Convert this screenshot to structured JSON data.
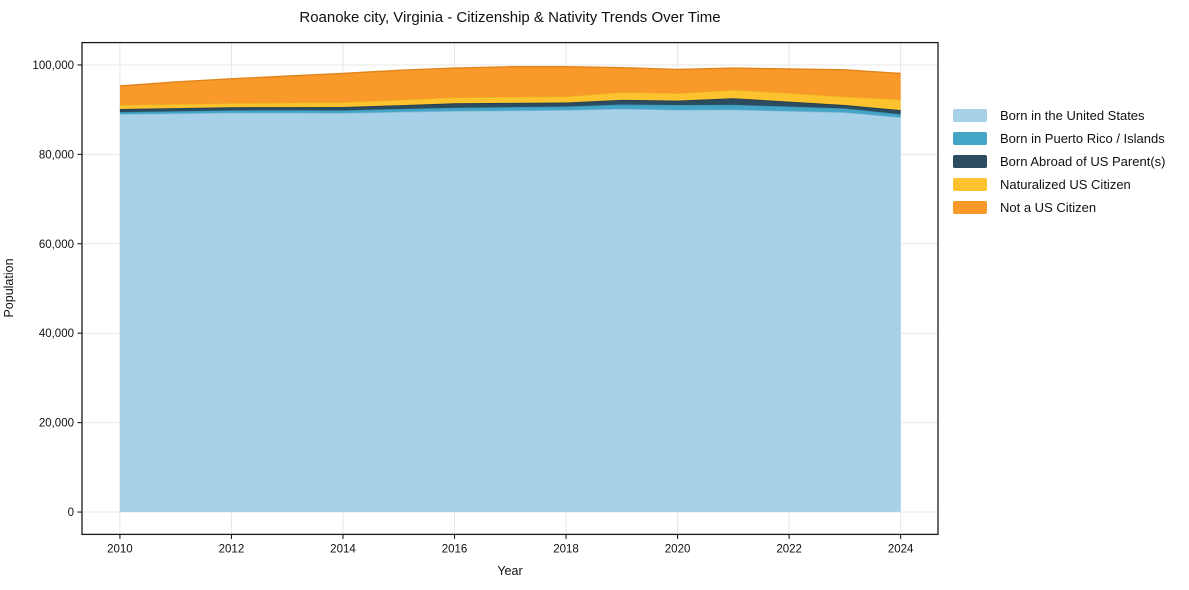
{
  "chart_data": {
    "type": "area",
    "stacked": true,
    "title": "Roanoke city, Virginia - Citizenship & Nativity Trends Over Time",
    "xlabel": "Year",
    "ylabel": "Population",
    "x": [
      2010,
      2011,
      2012,
      2013,
      2014,
      2015,
      2016,
      2017,
      2018,
      2019,
      2020,
      2021,
      2022,
      2023,
      2024
    ],
    "series": [
      {
        "name": "Born in the United States",
        "color": "#a6d1e8",
        "edge": "#84bcd9",
        "values": [
          89000,
          89150,
          89300,
          89300,
          89250,
          89500,
          89700,
          89800,
          89900,
          90200,
          89950,
          90000,
          89700,
          89400,
          88300
        ]
      },
      {
        "name": "Born in Puerto Rico / Islands",
        "color": "#45a5c6",
        "edge": "#3694b4",
        "values": [
          450,
          500,
          550,
          580,
          600,
          650,
          740,
          780,
          800,
          950,
          1100,
          1100,
          1000,
          890,
          670
        ]
      },
      {
        "name": "Born Abroad of US Parent(s)",
        "color": "#2c4b5e",
        "edge": "#203c4c",
        "values": [
          700,
          700,
          700,
          700,
          750,
          850,
          980,
          950,
          900,
          1050,
          960,
          1450,
          1100,
          740,
          930
        ]
      },
      {
        "name": "Naturalized US Citizen",
        "color": "#fdc32f",
        "edge": "#edb120",
        "values": [
          890,
          890,
          890,
          980,
          1050,
          1200,
          1340,
          1340,
          1340,
          1700,
          1660,
          1860,
          1900,
          1860,
          2400
        ]
      },
      {
        "name": "Not a US Citizen",
        "color": "#f8992a",
        "edge": "#e2841c",
        "values": [
          4260,
          4960,
          5460,
          5940,
          6450,
          6600,
          6540,
          6730,
          6660,
          5500,
          5330,
          4890,
          5400,
          6010,
          5800
        ]
      }
    ],
    "xticks": [
      2010,
      2012,
      2014,
      2016,
      2018,
      2020,
      2022,
      2024
    ],
    "yticks": [
      0,
      20000,
      40000,
      60000,
      80000,
      100000
    ],
    "xlim": [
      2009.32,
      2024.67
    ],
    "ylim": [
      -5000,
      105000
    ],
    "grid": true,
    "legend_position": "right-outside"
  },
  "colors": {
    "background": "#ffffff",
    "grid": "#e7e7e7",
    "spine": "#1a1a1a",
    "text": "#111111"
  }
}
